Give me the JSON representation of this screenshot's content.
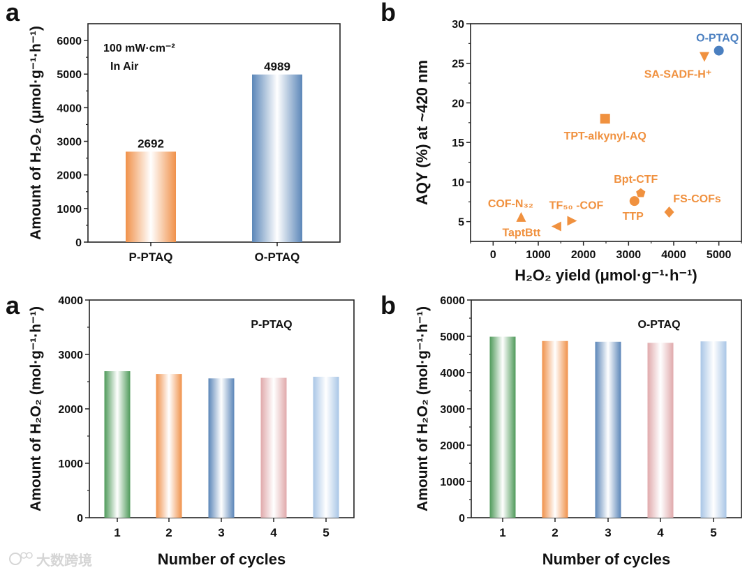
{
  "chart_data": [
    {
      "panel_label": "a",
      "type": "bar",
      "categories": [
        "P-PTAQ",
        "O-PTAQ"
      ],
      "values": [
        2692,
        4989
      ],
      "data_labels": [
        "2692",
        "4989"
      ],
      "colors": [
        "#f0914a",
        "#5b86b8"
      ],
      "annotation": [
        "100 mW·cm⁻²",
        "In Air"
      ],
      "xlabel": "",
      "ylabel": "Amount of H₂O₂ (μmol·g⁻¹·h⁻¹)",
      "ylim": [
        0,
        6500
      ],
      "yticks": [
        "0",
        "1000",
        "2000",
        "3000",
        "4000",
        "5000",
        "6000"
      ]
    },
    {
      "panel_label": "b",
      "type": "scatter",
      "xlabel": "H₂O₂ yield (μmol·g⁻¹·h⁻¹)",
      "ylabel": "AQY (%) at ~420 nm",
      "xlim": [
        -500,
        5500
      ],
      "ylim": [
        2.5,
        30
      ],
      "xticks": [
        "0",
        "1000",
        "2000",
        "3000",
        "4000",
        "5000"
      ],
      "yticks": [
        "5",
        "10",
        "15",
        "20",
        "25",
        "30"
      ],
      "points": [
        {
          "label": "O-PTAQ",
          "x": 5000,
          "y": 26.6,
          "marker": "circle",
          "color": "#4a7fc0"
        },
        {
          "label": "SA-SADF-H⁺",
          "x": 4680,
          "y": 25.8,
          "marker": "triangle-down",
          "color": "#f0913f"
        },
        {
          "label": "TPT-alkynyl-AQ",
          "x": 2480,
          "y": 18.0,
          "marker": "square",
          "color": "#f0913f"
        },
        {
          "label": "Bpt-CTF",
          "x": 3270,
          "y": 8.6,
          "marker": "pentagon",
          "color": "#f0913f"
        },
        {
          "label": "TTP",
          "x": 3130,
          "y": 7.6,
          "marker": "circle",
          "color": "#f0913f"
        },
        {
          "label": "FS-COFs",
          "x": 3900,
          "y": 6.2,
          "marker": "diamond",
          "color": "#f0913f"
        },
        {
          "label": "COF-N₃₂",
          "x": 620,
          "y": 5.6,
          "marker": "triangle-up",
          "color": "#f0913f"
        },
        {
          "label": "TF₅₀ -COF",
          "x": 1750,
          "y": 5.1,
          "marker": "triangle-right",
          "color": "#f0913f"
        },
        {
          "label": "TaptBtt",
          "x": 1400,
          "y": 4.4,
          "marker": "triangle-left",
          "color": "#f0913f"
        }
      ]
    },
    {
      "panel_label": "a",
      "type": "bar",
      "title": "P-PTAQ",
      "categories": [
        "1",
        "2",
        "3",
        "4",
        "5"
      ],
      "values": [
        2692,
        2640,
        2560,
        2570,
        2590
      ],
      "colors": [
        "#4f9a5a",
        "#f0914a",
        "#5b86b8",
        "#e0a9ab",
        "#a9c6e6"
      ],
      "xlabel": "Number of cycles",
      "ylabel": "Amount of H₂O₂ (mol·g⁻¹·h⁻¹)",
      "ylim": [
        0,
        4000
      ],
      "yticks": [
        "0",
        "1000",
        "2000",
        "3000",
        "4000"
      ]
    },
    {
      "panel_label": "b",
      "type": "bar",
      "title": "O-PTAQ",
      "categories": [
        "1",
        "2",
        "3",
        "4",
        "5"
      ],
      "values": [
        4989,
        4870,
        4850,
        4820,
        4860
      ],
      "colors": [
        "#4f9a5a",
        "#f0914a",
        "#5b86b8",
        "#e0a9ab",
        "#a9c6e6"
      ],
      "xlabel": "Number of cycles",
      "ylabel": "Amount of H₂O₂ (mol·g⁻¹·h⁻¹)",
      "ylim": [
        0,
        6000
      ],
      "yticks": [
        "0",
        "1000",
        "2000",
        "3000",
        "4000",
        "5000",
        "6000"
      ]
    }
  ],
  "watermark": "大数跨境"
}
